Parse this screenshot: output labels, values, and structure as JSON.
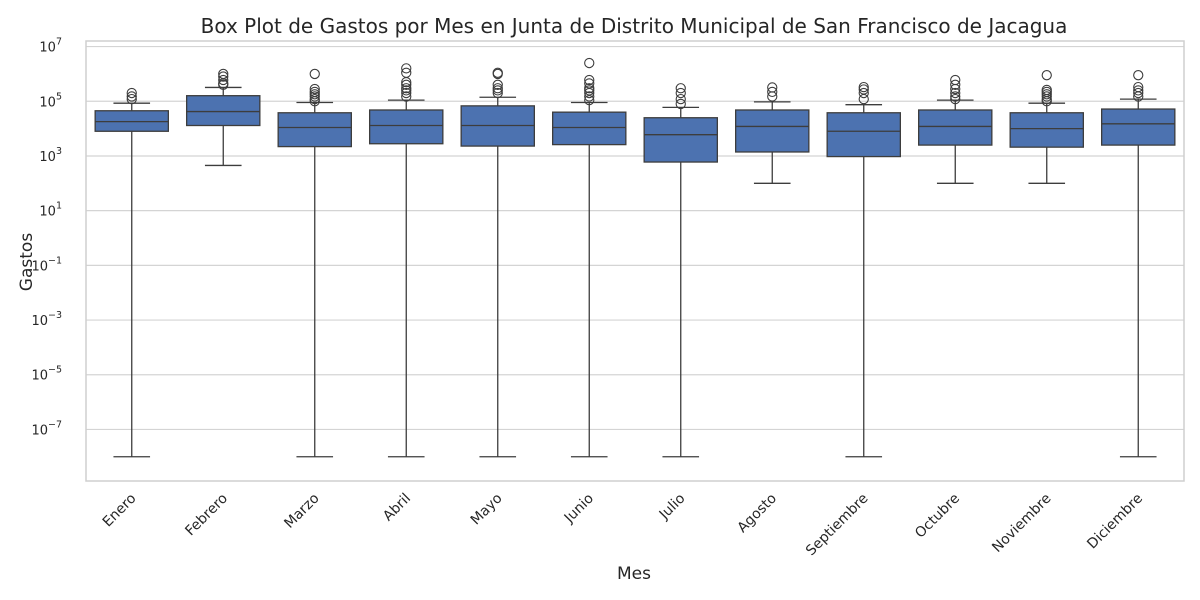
{
  "chart_data": {
    "type": "box",
    "title": "Box Plot de Gastos por Mes en Junta de Distrito Municipal de San Francisco de Jacagua",
    "xlabel": "Mes",
    "ylabel": "Gastos",
    "yscale": "log",
    "ylim": [
      1.3e-09,
      16000000.0
    ],
    "yticks": [
      {
        "value": 10000000.0,
        "base": "10",
        "exp": "7"
      },
      {
        "value": 100000.0,
        "base": "10",
        "exp": "5"
      },
      {
        "value": 1000.0,
        "base": "10",
        "exp": "3"
      },
      {
        "value": 10,
        "base": "10",
        "exp": "1"
      },
      {
        "value": 0.1,
        "base": "10",
        "exp": "−1"
      },
      {
        "value": 0.001,
        "base": "10",
        "exp": "−3"
      },
      {
        "value": 1e-05,
        "base": "10",
        "exp": "−5"
      },
      {
        "value": 1e-07,
        "base": "10",
        "exp": "−7"
      }
    ],
    "grid": true,
    "colors": {
      "box": "#4C72B0",
      "line": "#3d3d3d",
      "grid": "#d4d4d4",
      "frame": "#cfcfcf"
    },
    "categories": [
      "Enero",
      "Febrero",
      "Marzo",
      "Abril",
      "Mayo",
      "Junio",
      "Julio",
      "Agosto",
      "Septiembre",
      "Octubre",
      "Noviembre",
      "Diciembre"
    ],
    "boxes": [
      {
        "min": 1e-08,
        "q1": 8000,
        "median": 18000,
        "q3": 45000,
        "max": 85000,
        "outliers": [
          120000,
          150000,
          200000
        ]
      },
      {
        "min": 450,
        "q1": 13000,
        "median": 42000,
        "q3": 160000,
        "max": 320000,
        "outliers": [
          400000,
          450000,
          600000,
          800000,
          1000000
        ]
      },
      {
        "min": 1e-08,
        "q1": 2200,
        "median": 11000,
        "q3": 38000,
        "max": 90000,
        "outliers": [
          100000,
          120000,
          150000,
          180000,
          220000,
          280000,
          1000000
        ]
      },
      {
        "min": 1e-08,
        "q1": 2800,
        "median": 13000,
        "q3": 48000,
        "max": 110000,
        "outliers": [
          150000,
          200000,
          250000,
          300000,
          400000,
          500000,
          1100000,
          1600000
        ]
      },
      {
        "min": 1e-08,
        "q1": 2300,
        "median": 13000,
        "q3": 68000,
        "max": 140000,
        "outliers": [
          200000,
          250000,
          300000,
          400000,
          1000000,
          1100000
        ]
      },
      {
        "min": 1e-08,
        "q1": 2600,
        "median": 11000,
        "q3": 40000,
        "max": 90000,
        "outliers": [
          110000,
          150000,
          200000,
          250000,
          300000,
          450000,
          600000,
          2500000
        ]
      },
      {
        "min": 1e-08,
        "q1": 600,
        "median": 6000,
        "q3": 25000,
        "max": 60000,
        "outliers": [
          80000,
          120000,
          200000,
          300000
        ]
      },
      {
        "min": 100,
        "q1": 1400,
        "median": 12000,
        "q3": 48000,
        "max": 95000,
        "outliers": [
          150000,
          220000,
          320000
        ]
      },
      {
        "min": 1e-08,
        "q1": 950,
        "median": 8000,
        "q3": 38000,
        "max": 75000,
        "outliers": [
          120000,
          200000,
          270000,
          330000
        ]
      },
      {
        "min": 100,
        "q1": 2500,
        "median": 12000,
        "q3": 48000,
        "max": 110000,
        "outliers": [
          120000,
          150000,
          200000,
          280000,
          400000,
          600000
        ]
      },
      {
        "min": 100,
        "q1": 2100,
        "median": 10000,
        "q3": 38000,
        "max": 85000,
        "outliers": [
          100000,
          120000,
          150000,
          180000,
          220000,
          260000,
          900000
        ]
      },
      {
        "min": 1e-08,
        "q1": 2500,
        "median": 15000,
        "q3": 52000,
        "max": 120000,
        "outliers": [
          150000,
          200000,
          250000,
          330000,
          900000
        ]
      }
    ]
  }
}
